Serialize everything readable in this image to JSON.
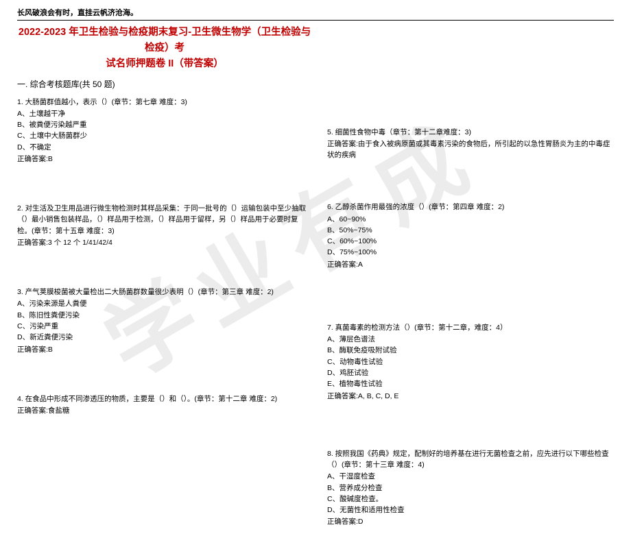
{
  "watermark_text": "学业有成",
  "motto": "长风破浪会有时，直挂云帆济沧海。",
  "title_line1": "2022-2023 年卫生检验与检疫期末复习-卫生微生物学（卫生检验与检疫）考",
  "title_line2": "试名师押题卷 II（带答案）",
  "section": "一. 综合考核题库(共 50 题)",
  "questions_left": [
    {
      "text": "1. 大肠菌群值越小，表示（）(章节：第七章  难度：3)",
      "options": [
        "A、土壤越干净",
        "B、被粪便污染越严重",
        "C、土壤中大肠菌群少",
        "D、不确定"
      ],
      "answer": "正确答案:B"
    },
    {
      "text": "2. 对生活及卫生用品进行微生物检测时其样品采集：于同一批号的（）运输包装中至少抽取（）最小销售包装样品，（）样品用于检测，（）样品用于留样，另（）样品用于必要时复检。(章节：第十五章 难度：3)",
      "options": [],
      "answer": "正确答案:3 个 12 个 1/41/42/4"
    },
    {
      "text": "3. 产气荚膜梭菌被大量检出二大肠菌群数量很少表明（）(章节：第三章   难度：2)",
      "options": [
        "A、污染来源是人粪便",
        "B、陈旧性粪便污染",
        "C、污染严重",
        "D、新近粪便污染"
      ],
      "answer": "正确答案:B"
    },
    {
      "text": "4. 在食品中形成不同渗透压的物质，主要是（）和（）。(章节：第十二章 难度：2)",
      "options": [],
      "answer": "正确答案:食盐糖"
    }
  ],
  "questions_right": [
    {
      "text": "5. 细菌性食物中毒（章节：第十二章难度：3)",
      "options": [],
      "answer": "正确答案:由于食入被病原菌或其毒素污染的食物后，所引起的以急性胃肠炎为主的中毒症状的疾病"
    },
    {
      "text": "6. 乙醇杀菌作用最强的浓度（）(章节：第四章   难度：2)",
      "options": [
        "A、60~90%",
        "B、50%~75%",
        "C、60%~100%",
        "D、75%~100%"
      ],
      "answer": "正确答案:A"
    },
    {
      "text": "7. 真菌毒素的检测方法（）(章节：第十二章，难度：4）",
      "options": [
        "A、薄层色谱法",
        "B、酶联免疫吸附试验",
        "C、动物毒性试验",
        "D、鸡胚试验",
        "E、植物毒性试验"
      ],
      "answer": "正确答案:A, B, C, D, E"
    },
    {
      "text": "8. 按照我国《药典》规定，配制好的培养基在进行无菌检查之前，应先进行以下哪些检查（）(章节：第十三章   难度：4)",
      "options": [
        "A、干湿度检查",
        "B、营养成分检查",
        "C、酸碱度检查。",
        "D、无菌性和适用性检查"
      ],
      "answer": "正确答案:D"
    }
  ]
}
